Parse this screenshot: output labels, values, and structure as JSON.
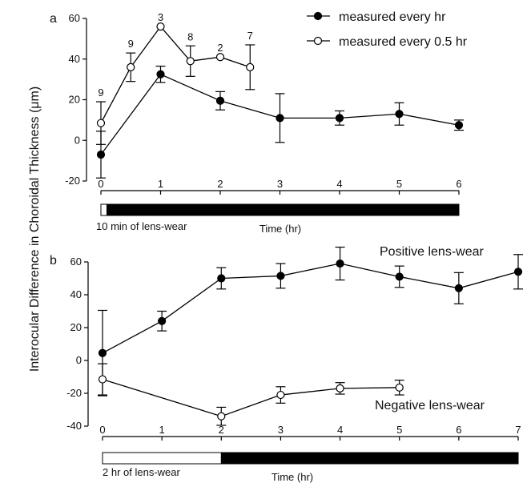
{
  "figure": {
    "ylabel": "Interocular Difference in Choroidal Thickness (μm)"
  },
  "chart_data": [
    {
      "panel": "a",
      "type": "line",
      "xlabel": "Time (hr)",
      "xlim": [
        0,
        6
      ],
      "ylim": [
        -20,
        60
      ],
      "xticks": [
        0,
        1,
        2,
        3,
        4,
        5,
        6
      ],
      "yticks": [
        -20,
        0,
        20,
        40,
        60
      ],
      "legend_position": "top-right",
      "bar": {
        "label": "10 min of lens-wear",
        "white_until": 0.1,
        "end": 6
      },
      "series": [
        {
          "name": "measured every hr",
          "marker": "filled",
          "x": [
            0,
            1,
            2,
            3,
            4,
            5,
            6
          ],
          "y": [
            -7,
            32.5,
            19.5,
            11,
            11,
            13,
            7.5
          ],
          "err": [
            11.5,
            4,
            4.5,
            12,
            3.5,
            5.5,
            2.5
          ],
          "n": []
        },
        {
          "name": "measured every 0.5 hr",
          "marker": "open",
          "x": [
            0,
            0.5,
            1,
            1.5,
            2,
            2.5
          ],
          "y": [
            8.5,
            36,
            56,
            39,
            41,
            36
          ],
          "err": [
            10.5,
            7,
            0,
            7.5,
            0,
            11
          ],
          "n": [
            "9",
            "9",
            "3",
            "8",
            "2",
            "7"
          ]
        }
      ]
    },
    {
      "panel": "b",
      "type": "line",
      "xlabel": "Time (hr)",
      "xlim": [
        0,
        7
      ],
      "ylim": [
        -40,
        60
      ],
      "xticks": [
        0,
        1,
        2,
        3,
        4,
        5,
        6,
        7
      ],
      "yticks": [
        -40,
        -20,
        0,
        20,
        40,
        60
      ],
      "bar": {
        "label": "2 hr of lens-wear",
        "white_until": 2,
        "end": 7
      },
      "annotations": [
        "Positive lens-wear",
        "Negative lens-wear"
      ],
      "series": [
        {
          "name": "Positive lens-wear",
          "marker": "filled",
          "x": [
            0,
            1,
            2,
            3,
            4,
            5,
            6,
            7
          ],
          "y": [
            4.5,
            24,
            50,
            51.5,
            59,
            51,
            44,
            54
          ],
          "err": [
            26,
            6,
            6.5,
            7.5,
            10,
            6.5,
            9.5,
            10.5
          ],
          "n": []
        },
        {
          "name": "Negative lens-wear",
          "marker": "open",
          "x": [
            0,
            2,
            3,
            4,
            5
          ],
          "y": [
            -11.5,
            -34,
            -21,
            -17,
            -16.5
          ],
          "err": [
            9.5,
            5.5,
            5,
            3.5,
            4.5
          ],
          "n": []
        }
      ]
    }
  ]
}
